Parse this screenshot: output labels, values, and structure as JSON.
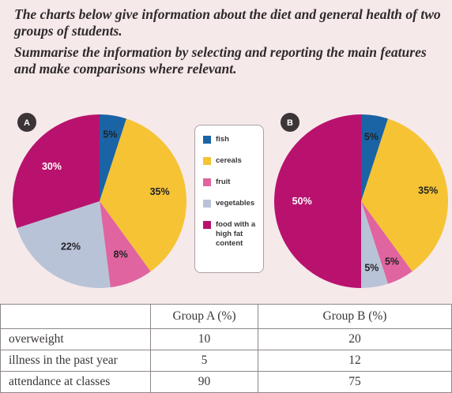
{
  "prompt": {
    "line1": "The charts below give information about the diet and general health of two groups of students.",
    "line2": "Summarise the information by selecting and reporting the main features and make comparisons where relevant."
  },
  "colors": {
    "fish": "#1a64a6",
    "cereals": "#f6c335",
    "fruit": "#e0649f",
    "vegetables": "#b9c3d8",
    "fat": "#b8126e"
  },
  "legend": [
    {
      "key": "fish",
      "label": "fish"
    },
    {
      "key": "cereals",
      "label": "cereals"
    },
    {
      "key": "fruit",
      "label": "fruit"
    },
    {
      "key": "vegetables",
      "label": "vegetables"
    },
    {
      "key": "fat",
      "label": "food with a high fat content"
    }
  ],
  "chart_data": [
    {
      "type": "pie",
      "title": "A",
      "slices": [
        {
          "key": "fish",
          "label": "5%",
          "value": 5
        },
        {
          "key": "cereals",
          "label": "35%",
          "value": 35
        },
        {
          "key": "fruit",
          "label": "8%",
          "value": 8
        },
        {
          "key": "vegetables",
          "label": "22%",
          "value": 22
        },
        {
          "key": "fat",
          "label": "30%",
          "value": 30
        }
      ]
    },
    {
      "type": "pie",
      "title": "B",
      "slices": [
        {
          "key": "fish",
          "label": "5%",
          "value": 5
        },
        {
          "key": "cereals",
          "label": "35%",
          "value": 35
        },
        {
          "key": "fruit",
          "label": "5%",
          "value": 5
        },
        {
          "key": "vegetables",
          "label": "5%",
          "value": 5
        },
        {
          "key": "fat",
          "label": "50%",
          "value": 50
        }
      ]
    },
    {
      "type": "table",
      "columns": [
        "",
        "Group A (%)",
        "Group B (%)"
      ],
      "rows": [
        {
          "label": "overweight",
          "a": "10",
          "b": "20"
        },
        {
          "label": "illness in the past year",
          "a": "5",
          "b": "12"
        },
        {
          "label": "attendance at classes",
          "a": "90",
          "b": "75"
        }
      ]
    }
  ]
}
